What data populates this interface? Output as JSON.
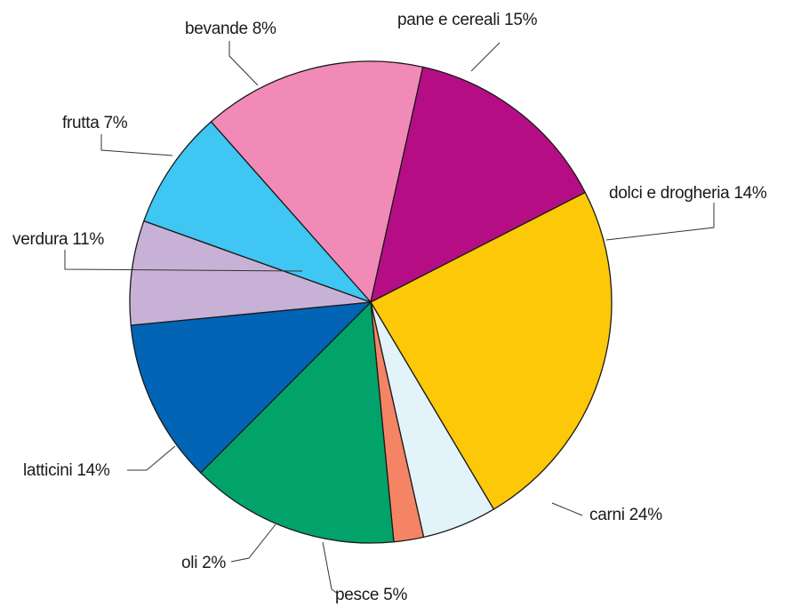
{
  "chart_data": {
    "type": "pie",
    "slices": [
      {
        "label": "pane e cereali 15%",
        "value": 15,
        "color": "#f28ab8"
      },
      {
        "label": "dolci e drogheria 14%",
        "value": 14,
        "color": "#b50e84"
      },
      {
        "label": "carni 24%",
        "value": 24,
        "color": "#fcc808"
      },
      {
        "label": "pesce 5%",
        "value": 5,
        "color": "#e2f3fa"
      },
      {
        "label": "oli 2%",
        "value": 2,
        "color": "#f58465"
      },
      {
        "label": "latticini 14%",
        "value": 14,
        "color": "#02a36b"
      },
      {
        "label": "verdura 11%",
        "value": 11,
        "color": "#0164b5"
      },
      {
        "label": "frutta 7%",
        "value": 7,
        "color": "#c8b1d6"
      },
      {
        "label": "bevande 8%",
        "value": 8,
        "color": "#3fc6f3"
      }
    ]
  }
}
